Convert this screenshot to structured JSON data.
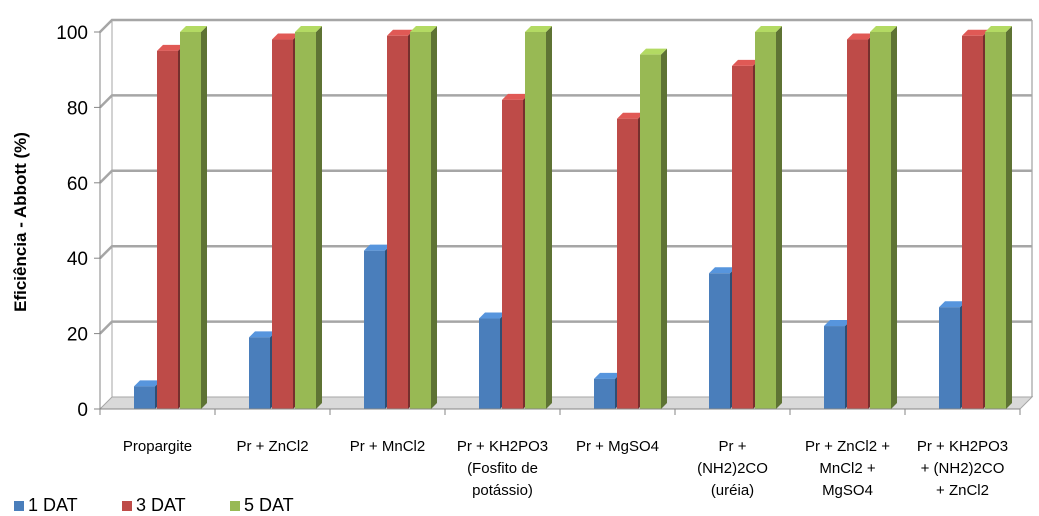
{
  "chart_data": {
    "type": "bar",
    "title": "",
    "xlabel": "",
    "ylabel": "Eficiência - Abbott (%)",
    "ylim": [
      0,
      100
    ],
    "yticks": [
      0,
      20,
      40,
      60,
      80,
      100
    ],
    "grid": true,
    "legend_position": "bottom-left",
    "categories": [
      [
        "Propargite"
      ],
      [
        "Pr + ZnCl2"
      ],
      [
        "Pr + MnCl2"
      ],
      [
        "Pr + KH2PO3",
        "(Fosfito de",
        "potássio)"
      ],
      [
        "Pr + MgSO4"
      ],
      [
        "Pr +",
        "(NH2)2CO",
        "(uréia)"
      ],
      [
        "Pr + ZnCl2 +",
        "MnCl2 +",
        "MgSO4"
      ],
      [
        "Pr + KH2PO3",
        "+ (NH2)2CO",
        "+ ZnCl2"
      ]
    ],
    "series": [
      {
        "name": "1 DAT",
        "color": "#4a7ebb",
        "values": [
          6,
          19,
          42,
          24,
          8,
          36,
          22,
          27
        ]
      },
      {
        "name": "3 DAT",
        "color": "#be4b48",
        "values": [
          95,
          98,
          99,
          82,
          77,
          91,
          98,
          99
        ]
      },
      {
        "name": "5 DAT",
        "color": "#98b954",
        "values": [
          100,
          100,
          100,
          100,
          94,
          100,
          100,
          100
        ]
      }
    ]
  }
}
